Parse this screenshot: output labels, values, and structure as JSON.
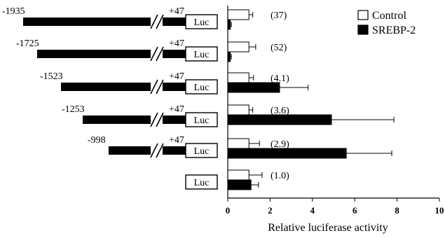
{
  "chart_data": {
    "type": "bar",
    "orientation": "horizontal",
    "title": "",
    "xlabel": "Relative luciferase activity",
    "ylabel": "",
    "xlim": [
      0,
      10
    ],
    "xticks": [
      0,
      2,
      4,
      6,
      8,
      10
    ],
    "grid": false,
    "legend_position": "top-right",
    "categories": [
      "-1935/+47",
      "-1725/+47",
      "-1523/+47",
      "-1253/+47",
      "-998/+47",
      "Luc"
    ],
    "series": [
      {
        "name": "Control",
        "color": "#ffffff",
        "values": [
          1.0,
          1.0,
          1.0,
          1.0,
          1.0,
          1.0
        ],
        "errors": [
          0.18,
          0.32,
          0.22,
          0.18,
          0.5,
          0.62
        ]
      },
      {
        "name": "SREBP-2",
        "color": "#000000",
        "values": [
          0.12,
          0.12,
          2.45,
          4.9,
          5.6,
          1.1
        ],
        "errors": [
          0.05,
          0.05,
          1.35,
          2.95,
          2.15,
          0.35
        ]
      }
    ],
    "fold_labels": [
      "(37)",
      "(52)",
      "(4.1)",
      "(3.6)",
      "(2.9)",
      "(1.0)"
    ]
  },
  "constructs": [
    {
      "start": "-1935",
      "end": "+47",
      "box": "Luc"
    },
    {
      "start": "-1725",
      "end": "+47",
      "box": "Luc"
    },
    {
      "start": "-1523",
      "end": "+47",
      "box": "Luc"
    },
    {
      "start": "-1253",
      "end": "+47",
      "box": "Luc"
    },
    {
      "start": "-998",
      "end": "+47",
      "box": "Luc"
    },
    {
      "start": "",
      "end": "",
      "box": "Luc"
    }
  ]
}
